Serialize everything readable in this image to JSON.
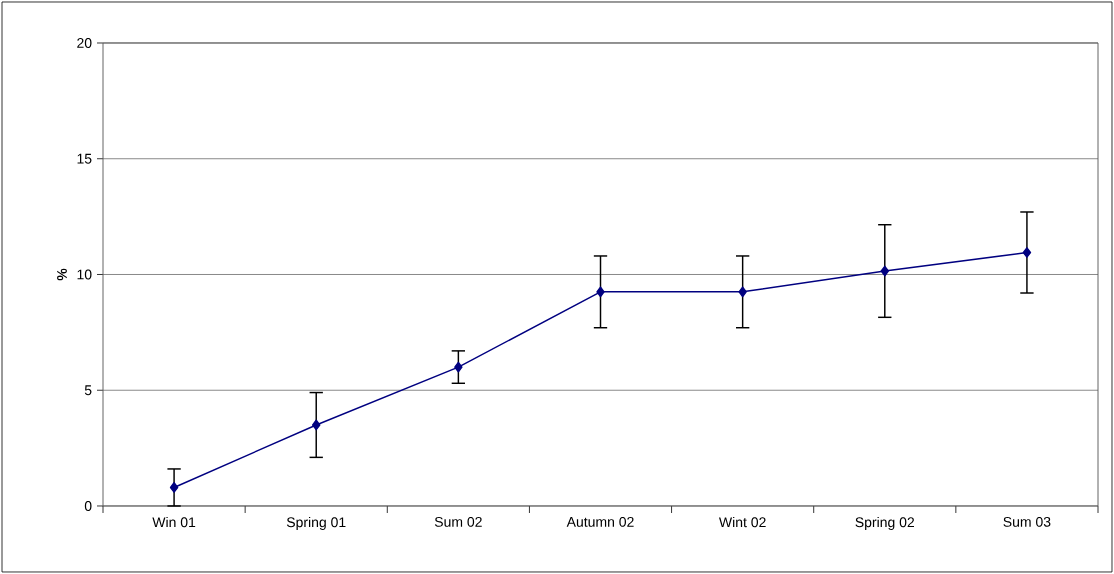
{
  "chart_data": {
    "type": "line",
    "ylabel": "%",
    "categories": [
      "Win 01",
      "Spring 01",
      "Sum 02",
      "Autumn 02",
      "Wint 02",
      "Spring 02",
      "Sum 03"
    ],
    "series": [
      {
        "color": "#000080",
        "values": [
          0.8,
          3.5,
          6.0,
          9.25,
          9.25,
          10.15,
          10.95
        ],
        "errors": [
          0.8,
          1.4,
          0.7,
          1.55,
          1.55,
          2.0,
          1.75
        ]
      }
    ],
    "ylim": [
      0,
      20
    ],
    "yticks": [
      0,
      5,
      10,
      15,
      20
    ],
    "grid": "y",
    "marker": "diamond"
  }
}
